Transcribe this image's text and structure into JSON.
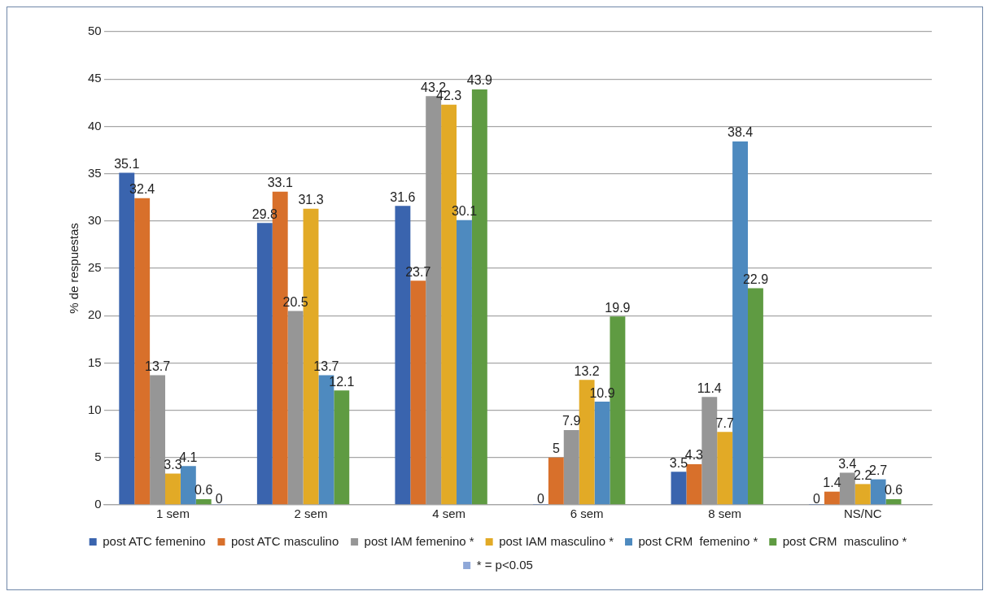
{
  "chart_data": {
    "type": "bar",
    "ylabel": "% de respuestas",
    "categories": [
      "1 sem",
      "2 sem",
      "4 sem",
      "6 sem",
      "8 sem",
      "NS/NC"
    ],
    "series": [
      {
        "name": "post ATC femenino",
        "color": "#3a64ae",
        "values": [
          35.1,
          29.8,
          31.6,
          0,
          3.5,
          0
        ]
      },
      {
        "name": "post ATC masculino",
        "color": "#d8702b",
        "values": [
          32.4,
          33.1,
          23.7,
          5,
          4.3,
          1.4
        ]
      },
      {
        "name": "post IAM femenino *",
        "color": "#969696",
        "values": [
          13.7,
          20.5,
          43.2,
          7.9,
          11.4,
          3.4
        ]
      },
      {
        "name": "post IAM masculino *",
        "color": "#e2aa26",
        "values": [
          3.3,
          31.3,
          42.3,
          13.2,
          7.7,
          2.2
        ]
      },
      {
        "name": "post CRM  femenino *",
        "color": "#4e8abf",
        "values": [
          4.1,
          13.7,
          30.1,
          10.9,
          38.4,
          2.7
        ]
      },
      {
        "name": "post CRM  masculino *",
        "color": "#5f9b42",
        "values": [
          0.6,
          12.1,
          43.9,
          19.9,
          22.9,
          0.6
        ]
      },
      {
        "name": "* = p<0.05",
        "color": "#8fa8d8",
        "values": [
          0,
          null,
          null,
          null,
          null,
          null
        ]
      }
    ],
    "ylim": [
      0,
      50
    ],
    "yticks": [
      0,
      5,
      10,
      15,
      20,
      25,
      30,
      35,
      40,
      45,
      50
    ],
    "grid": "y",
    "legend": "bottom",
    "data_labels": true
  }
}
